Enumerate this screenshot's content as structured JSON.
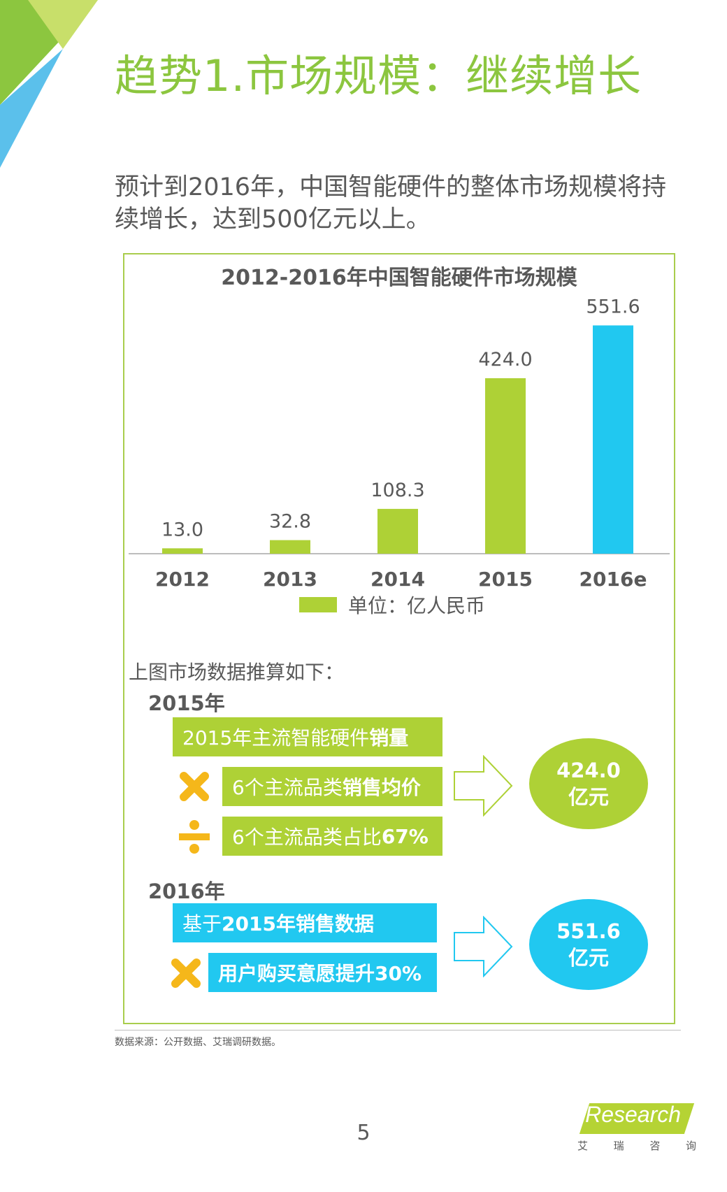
{
  "header": {
    "title": "趋势1.市场规模：继续增长"
  },
  "intro": {
    "text": "预计到2016年，中国智能硬件的整体市场规模将持续增长，达到500亿元以上。"
  },
  "chart_data": {
    "type": "bar",
    "title": "2012-2016年中国智能硬件市场规模",
    "categories": [
      "2012",
      "2013",
      "2014",
      "2015",
      "2016e"
    ],
    "values": [
      13.0,
      32.8,
      108.3,
      424.0,
      551.6
    ],
    "value_labels": [
      "13.0",
      "32.8",
      "108.3",
      "424.0",
      "551.6"
    ],
    "bar_colors": [
      "#aed136",
      "#aed136",
      "#aed136",
      "#aed136",
      "#21c8f0"
    ],
    "legend": "单位：亿人民币",
    "legend_color": "#aed136",
    "ylim": [
      0,
      600
    ],
    "grid": false,
    "xlabel": "",
    "ylabel": ""
  },
  "calculation": {
    "intro": "上图市场数据推算如下：",
    "y2015": {
      "label": "2015年",
      "box1_normal": "2015年主流智能硬件",
      "box1_bold": "销量",
      "op1": "multiply",
      "box2_normal": "6个主流品类",
      "box2_bold": "销售均价",
      "op2": "divide",
      "box3_normal": "6个主流品类占比",
      "box3_bold": "67%",
      "result_value": "424.0",
      "result_unit": "亿元"
    },
    "y2016": {
      "label": "2016年",
      "box1_normal": "基于",
      "box1_bold": "2015年销售数据",
      "op1": "multiply",
      "box2_normal": "",
      "box2_bold": "用户购买意愿提升30%",
      "result_value": "551.6",
      "result_unit": "亿元"
    }
  },
  "colors": {
    "accent_green": "#aed136",
    "accent_blue": "#21c8f0",
    "operator_orange": "#f5b71a"
  },
  "footer": {
    "source": "数据来源：公开数据、艾瑞调研数据。",
    "page_number": "5",
    "logo_text": "iResearch",
    "logo_chars": [
      "艾",
      "瑞",
      "咨",
      "询"
    ]
  }
}
